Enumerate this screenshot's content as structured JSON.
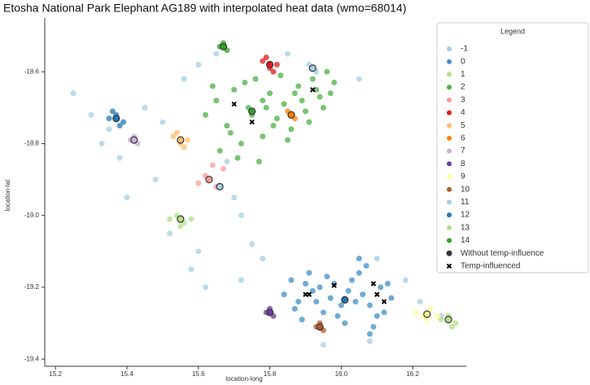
{
  "chart_data": {
    "type": "scatter",
    "title": "Etosha National Park Elephant AG189 with interpolated heat data (wmo=68014)",
    "x_label": "location-long",
    "y_label": "location-lat",
    "xlim": [
      15.17,
      16.35
    ],
    "ylim": [
      -19.42,
      -18.45
    ],
    "xticks": [
      15.2,
      15.4,
      15.6,
      15.8,
      {
        "value": 16,
        "label": "16.0"
      },
      16.2
    ],
    "yticks": [
      -18.6,
      -18.8,
      {
        "value": -19,
        "label": "-19.0"
      },
      -19.2,
      -19.4
    ],
    "legend_title": "Legend",
    "legend_position": "upper right",
    "series": [
      {
        "name": "-1",
        "color": "#a6cee3",
        "marker": "dot",
        "x": [
          15.25,
          15.3,
          15.33,
          15.38,
          15.45,
          15.5,
          15.48,
          15.52,
          15.6,
          15.58,
          15.62,
          15.56,
          15.6,
          15.65,
          15.7,
          15.72,
          15.75,
          15.78,
          15.72,
          15.68,
          15.85,
          16.05,
          16.1,
          16.18,
          16.22,
          16.28,
          15.4,
          15.35,
          16.08,
          15.95
        ],
        "y": [
          -18.66,
          -18.72,
          -18.8,
          -18.84,
          -18.7,
          -18.74,
          -18.9,
          -19.05,
          -19.1,
          -19.15,
          -19.2,
          -18.62,
          -18.58,
          -18.55,
          -18.95,
          -19.0,
          -19.08,
          -19.12,
          -19.18,
          -18.85,
          -18.55,
          -18.62,
          -19.12,
          -19.18,
          -19.24,
          -19.28,
          -18.95,
          -18.76,
          -19.35,
          -19.36
        ]
      },
      {
        "name": "0",
        "color": "#3f8fc6",
        "marker": "dot",
        "x": [
          15.84,
          15.87,
          15.9,
          15.93,
          15.96,
          15.99,
          16.02,
          16.05,
          16.08,
          16.11,
          16.14,
          15.86,
          15.89,
          15.92,
          15.95,
          15.98,
          16.01,
          16.04,
          16.07,
          16.1,
          16.13,
          15.88,
          15.94,
          16.0,
          16.06,
          16.12,
          15.91,
          15.97,
          16.03,
          16.09,
          16.05,
          16.08
        ],
        "y": [
          -19.22,
          -19.26,
          -19.19,
          -19.24,
          -19.17,
          -19.28,
          -19.21,
          -19.16,
          -19.25,
          -19.2,
          -19.23,
          -19.18,
          -19.29,
          -19.21,
          -19.27,
          -19.19,
          -19.3,
          -19.24,
          -19.14,
          -19.28,
          -19.19,
          -19.24,
          -19.2,
          -19.25,
          -19.22,
          -19.27,
          -19.16,
          -19.23,
          -19.18,
          -19.31,
          -19.12,
          -19.33
        ]
      },
      {
        "name": "1",
        "color": "#b2df8a",
        "marker": "dot",
        "x": [
          16.28,
          16.3,
          16.32,
          16.31
        ],
        "y": [
          -19.29,
          -19.28,
          -19.3,
          -19.31
        ]
      },
      {
        "name": "2",
        "color": "#4caf45",
        "marker": "dot",
        "x": [
          15.62,
          15.65,
          15.68,
          15.7,
          15.72,
          15.74,
          15.76,
          15.78,
          15.8,
          15.82,
          15.84,
          15.86,
          15.88,
          15.9,
          15.92,
          15.94,
          15.96,
          15.98,
          15.66,
          15.71,
          15.75,
          15.79,
          15.83,
          15.87,
          15.91,
          15.95,
          15.69,
          15.73,
          15.77,
          15.81,
          15.85,
          15.89,
          15.93,
          15.97,
          15.64,
          15.78
        ],
        "y": [
          -18.72,
          -18.68,
          -18.75,
          -18.65,
          -18.8,
          -18.7,
          -18.62,
          -18.78,
          -18.66,
          -18.73,
          -18.69,
          -18.76,
          -18.64,
          -18.71,
          -18.62,
          -18.67,
          -18.6,
          -18.63,
          -18.82,
          -18.84,
          -18.72,
          -18.7,
          -18.61,
          -18.66,
          -18.74,
          -18.7,
          -18.77,
          -18.63,
          -18.85,
          -18.75,
          -18.79,
          -18.68,
          -18.65,
          -18.66,
          -18.64,
          -18.68
        ]
      },
      {
        "name": "3",
        "color": "#fb9a99",
        "marker": "dot",
        "x": [
          15.6,
          15.62,
          15.65,
          15.67,
          15.64
        ],
        "y": [
          -18.91,
          -18.89,
          -18.92,
          -18.87,
          -18.86
        ]
      },
      {
        "name": "4",
        "color": "#e31a1c",
        "marker": "dot",
        "x": [
          15.78,
          15.8,
          15.82,
          15.79,
          15.81
        ],
        "y": [
          -18.57,
          -18.59,
          -18.58,
          -18.56,
          -18.6
        ]
      },
      {
        "name": "5",
        "color": "#fdbf6f",
        "marker": "dot",
        "x": [
          15.53,
          15.55,
          15.57,
          15.54,
          15.56
        ],
        "y": [
          -18.78,
          -18.8,
          -18.79,
          -18.77,
          -18.81
        ]
      },
      {
        "name": "6",
        "color": "#ff7f00",
        "marker": "dot",
        "x": [
          15.85,
          15.86,
          15.87
        ],
        "y": [
          -18.71,
          -18.72,
          -18.73
        ]
      },
      {
        "name": "7",
        "color": "#cab2d6",
        "marker": "dot",
        "x": [
          15.41,
          15.42,
          15.43
        ],
        "y": [
          -18.79,
          -18.78,
          -18.8
        ]
      },
      {
        "name": "8",
        "color": "#6a3d9a",
        "marker": "dot",
        "x": [
          15.79,
          15.8,
          15.81
        ],
        "y": [
          -19.27,
          -19.26,
          -19.28
        ]
      },
      {
        "name": "9",
        "color": "#ffff99",
        "marker": "dot",
        "x": [
          16.21,
          16.23,
          16.25,
          16.27,
          16.24
        ],
        "y": [
          -19.27,
          -19.28,
          -19.26,
          -19.28,
          -19.29
        ]
      },
      {
        "name": "10",
        "color": "#b15928",
        "marker": "dot",
        "x": [
          15.93,
          15.94,
          15.95
        ],
        "y": [
          -19.31,
          -19.3,
          -19.32
        ]
      },
      {
        "name": "11",
        "color": "#a6cee3",
        "marker": "dot",
        "x": [
          15.91,
          15.92,
          15.93
        ],
        "y": [
          -18.58,
          -18.59,
          -18.6
        ]
      },
      {
        "name": "12",
        "color": "#1f78b4",
        "marker": "dot",
        "x": [
          15.35,
          15.37,
          15.39,
          15.36,
          15.38
        ],
        "y": [
          -18.73,
          -18.72,
          -18.74,
          -18.71,
          -18.75
        ]
      },
      {
        "name": "13",
        "color": "#b2df8a",
        "marker": "dot",
        "x": [
          15.52,
          15.54,
          15.56,
          15.58,
          15.55
        ],
        "y": [
          -19.01,
          -19.0,
          -19.02,
          -19.01,
          -19.03
        ]
      },
      {
        "name": "14",
        "color": "#33a02c",
        "marker": "dot",
        "x": [
          15.66,
          15.67,
          15.68
        ],
        "y": [
          -18.53,
          -18.52,
          -18.54
        ]
      },
      {
        "name": "Without temp-influence",
        "color": "#333333",
        "marker": "circle",
        "x": [
          15.67,
          15.8,
          15.92,
          15.75,
          15.86,
          15.37,
          15.55,
          15.42,
          15.63,
          15.66,
          15.55,
          15.8,
          16.01,
          15.94,
          16.24,
          16.3
        ],
        "y": [
          -18.53,
          -18.58,
          -18.59,
          -18.71,
          -18.72,
          -18.73,
          -18.79,
          -18.79,
          -18.9,
          -18.92,
          -19.01,
          -19.27,
          -19.235,
          -19.31,
          -19.275,
          -19.29
        ],
        "colors": [
          "#33a02c",
          "#e31a1c",
          "#a6cee3",
          "#33a02c",
          "#ff7f00",
          "#1f78b4",
          "#fdbf6f",
          "#cab2d6",
          "#fb9a99",
          "#a6cee3",
          "#b2df8a",
          "#6a3d9a",
          "#1f78b4",
          "#b15928",
          "#ffff99",
          "#b2df8a"
        ]
      },
      {
        "name": "Temp-influenced",
        "color": "#000000",
        "marker": "x",
        "x": [
          15.7,
          15.75,
          15.92,
          15.9,
          15.91,
          15.98,
          16.09,
          16.1,
          16.12
        ],
        "y": [
          -18.69,
          -18.74,
          -18.65,
          -19.22,
          -19.22,
          -19.195,
          -19.19,
          -19.22,
          -19.24
        ]
      }
    ]
  }
}
